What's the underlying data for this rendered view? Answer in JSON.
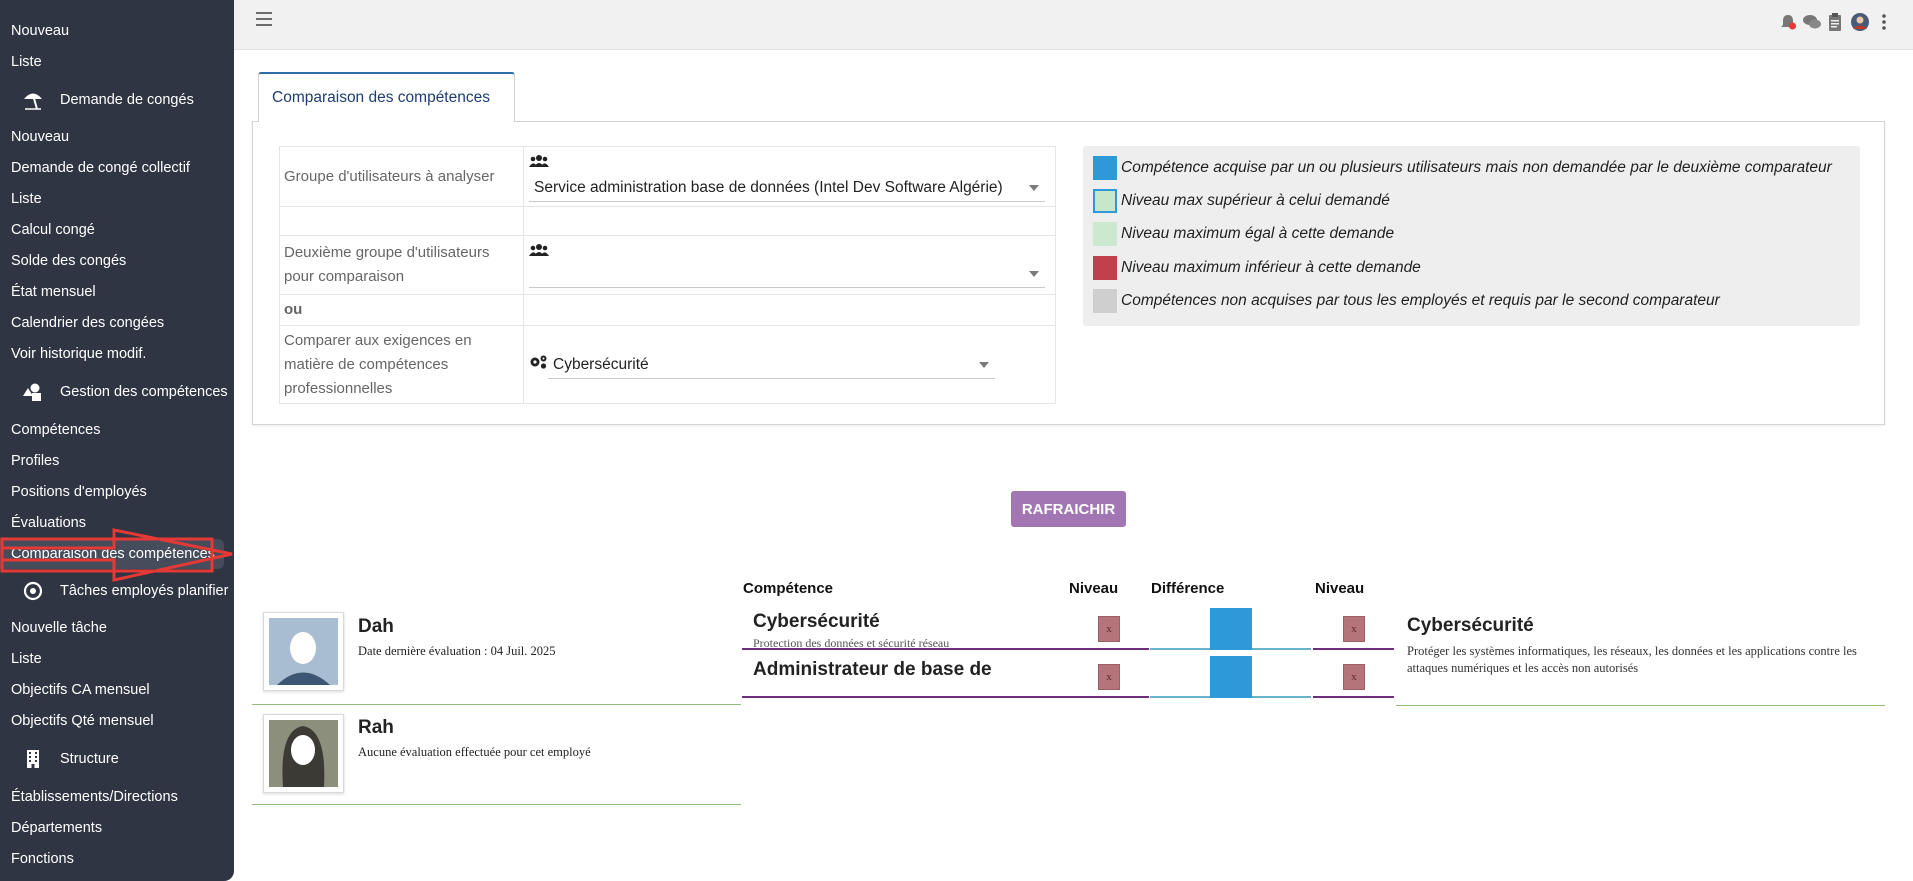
{
  "sidebar": {
    "items": [
      {
        "label": "Nouveau",
        "top": 23
      },
      {
        "label": "Liste",
        "top": 54
      }
    ],
    "leave_section": "Demande de congés",
    "leave_items": [
      "Nouveau",
      "Demande de congé collectif",
      "Liste",
      "Calcul congé",
      "Solde des congés",
      "État mensuel",
      "Calendrier des congées",
      "Voir historique modif."
    ],
    "skills_section": "Gestion des compétences",
    "skills_items": [
      "Compétences",
      "Profiles",
      "Positions d'employés",
      "Évaluations",
      "Comparaison des compétences"
    ],
    "tasks_section": "Tâches employés planifier",
    "tasks_items": [
      "Nouvelle tâche",
      "Liste",
      "Objectifs CA mensuel",
      "Objectifs Qté mensuel"
    ],
    "structure_section": "Structure",
    "structure_items": [
      "Établissements/Directions",
      "Départements",
      "Fonctions"
    ]
  },
  "tab": {
    "label": "Comparaison des compétences"
  },
  "form": {
    "group_label": "Groupe d'utilisateurs à analyser",
    "group_value": "Service administration base de données (Intel Dev Software Algérie)",
    "second_group_label": "Deuxième groupe d'utilisateurs pour comparaison",
    "second_group_value": "",
    "or_label": "ou",
    "compare_label": "Comparer aux exigences en matière de compétences professionnelles",
    "compare_value": "Cybersécurité"
  },
  "legend": [
    {
      "text": "Compétence acquise par un ou plusieurs utilisateurs mais non demandée par le deuxième comparateur",
      "color": "#2f98d6"
    },
    {
      "text": "Niveau max supérieur à celui demandé",
      "color": "#c8e6c9"
    },
    {
      "text": "Niveau maximum égal à cette demande",
      "color": "#cce8cf"
    },
    {
      "text": "Niveau maximum inférieur à cette demande",
      "color": "#c0404c"
    },
    {
      "text": "Compétences non acquises par tous les employés et requis par le second comparateur",
      "color": "#cfcfcf"
    }
  ],
  "refresh_label": "RAFRAICHIR",
  "results": {
    "col_competence": "Compétence",
    "col_level": "Niveau",
    "col_difference": "Différence",
    "col_level2": "Niveau",
    "employees": [
      {
        "name": "Dah",
        "subtitle": "Date dernière évaluation : 04 Juil. 2025"
      },
      {
        "name": "Rah",
        "subtitle": "Aucune évaluation effectuée pour cet employé"
      }
    ],
    "rows": [
      {
        "title": "Cybersécurité",
        "desc": "Protection des données et sécurité réseau",
        "level_mark": "x",
        "level2_mark": "x"
      },
      {
        "title": "Administrateur de base de",
        "desc": "",
        "level_mark": "x",
        "level2_mark": "x"
      }
    ],
    "right_title": "Cybersécurité",
    "right_desc": "Protéger les systèmes informatiques, les réseaux, les données et les applications contre les attaques numériques et les accès non autorisés"
  }
}
